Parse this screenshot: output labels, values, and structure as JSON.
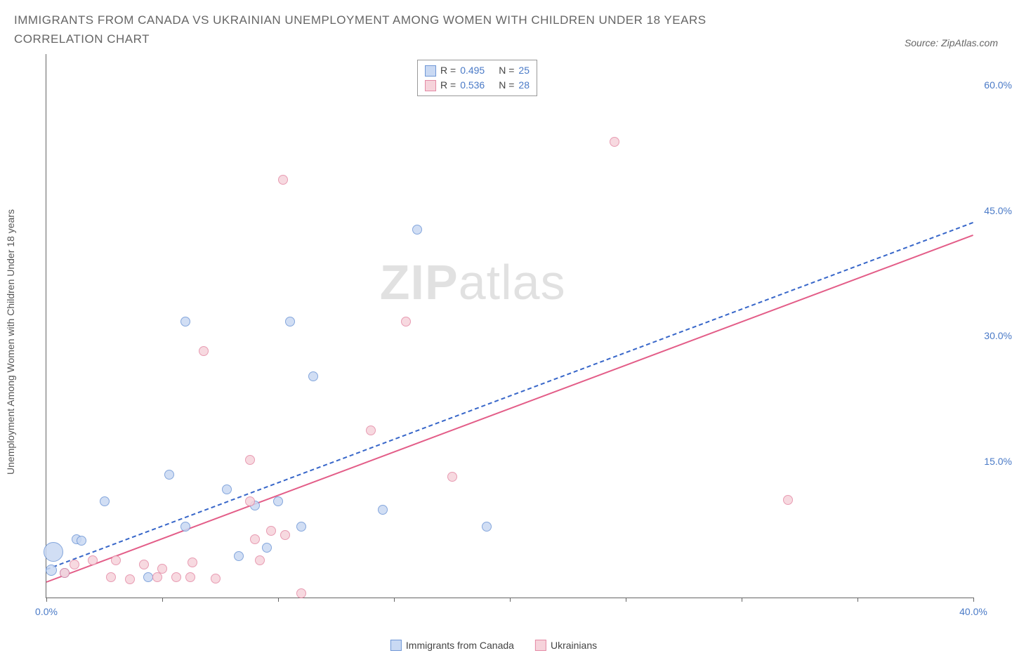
{
  "title": "IMMIGRANTS FROM CANADA VS UKRAINIAN UNEMPLOYMENT AMONG WOMEN WITH CHILDREN UNDER 18 YEARS CORRELATION CHART",
  "source_label": "Source: ZipAtlas.com",
  "watermark_bold": "ZIP",
  "watermark_light": "atlas",
  "chart": {
    "type": "scatter-with-trend",
    "y_axis_label": "Unemployment Among Women with Children Under 18 years",
    "x_axis": {
      "min": 0,
      "max": 40,
      "ticks": [
        0,
        5,
        10,
        15,
        20,
        25,
        30,
        35,
        40
      ],
      "labeled_ticks": [
        {
          "v": 0,
          "label": "0.0%"
        },
        {
          "v": 40,
          "label": "40.0%"
        }
      ]
    },
    "y_axis": {
      "min": 0,
      "max": 65,
      "labeled_ticks": [
        {
          "v": 15,
          "label": "15.0%"
        },
        {
          "v": 30,
          "label": "30.0%"
        },
        {
          "v": 45,
          "label": "45.0%"
        },
        {
          "v": 60,
          "label": "60.0%"
        }
      ]
    },
    "series": [
      {
        "name": "Immigrants from Canada",
        "fill": "#c9d9f3",
        "stroke": "#6f97d6",
        "R": "0.495",
        "N": "25",
        "trend": {
          "x0": 0,
          "y0": 3.5,
          "x1": 40,
          "y1": 45,
          "dashed": true,
          "color": "#3766c9"
        },
        "points": [
          {
            "x": 0.3,
            "y": 5.5,
            "r": 14
          },
          {
            "x": 0.2,
            "y": 3.3,
            "r": 8
          },
          {
            "x": 0.8,
            "y": 3.0,
            "r": 7
          },
          {
            "x": 1.3,
            "y": 7.0,
            "r": 7
          },
          {
            "x": 1.5,
            "y": 6.8,
            "r": 7
          },
          {
            "x": 2.5,
            "y": 11.5,
            "r": 7
          },
          {
            "x": 4.4,
            "y": 2.5,
            "r": 7
          },
          {
            "x": 5.3,
            "y": 14.7,
            "r": 7
          },
          {
            "x": 6.0,
            "y": 8.5,
            "r": 7
          },
          {
            "x": 6.0,
            "y": 33.0,
            "r": 7
          },
          {
            "x": 7.8,
            "y": 13.0,
            "r": 7
          },
          {
            "x": 8.3,
            "y": 5.0,
            "r": 7
          },
          {
            "x": 9.0,
            "y": 11.0,
            "r": 7
          },
          {
            "x": 9.5,
            "y": 6.0,
            "r": 7
          },
          {
            "x": 10.0,
            "y": 11.5,
            "r": 7
          },
          {
            "x": 10.5,
            "y": 33.0,
            "r": 7
          },
          {
            "x": 11.0,
            "y": 8.5,
            "r": 7
          },
          {
            "x": 11.5,
            "y": 26.5,
            "r": 7
          },
          {
            "x": 14.5,
            "y": 10.5,
            "r": 7
          },
          {
            "x": 16.0,
            "y": 44.0,
            "r": 7
          },
          {
            "x": 19.0,
            "y": 8.5,
            "r": 7
          }
        ]
      },
      {
        "name": "Ukrainians",
        "fill": "#f6d3db",
        "stroke": "#e48aa5",
        "R": "0.536",
        "N": "28",
        "trend": {
          "x0": 0,
          "y0": 2.0,
          "x1": 40,
          "y1": 43.5,
          "dashed": false,
          "color": "#e35d88"
        },
        "points": [
          {
            "x": 0.8,
            "y": 3.0,
            "r": 7
          },
          {
            "x": 1.2,
            "y": 4.0,
            "r": 7
          },
          {
            "x": 2.0,
            "y": 4.5,
            "r": 7
          },
          {
            "x": 2.8,
            "y": 2.5,
            "r": 7
          },
          {
            "x": 3.0,
            "y": 4.5,
            "r": 7
          },
          {
            "x": 3.6,
            "y": 2.2,
            "r": 7
          },
          {
            "x": 4.2,
            "y": 4.0,
            "r": 7
          },
          {
            "x": 4.8,
            "y": 2.5,
            "r": 7
          },
          {
            "x": 5.0,
            "y": 3.5,
            "r": 7
          },
          {
            "x": 5.6,
            "y": 2.5,
            "r": 7
          },
          {
            "x": 6.2,
            "y": 2.5,
            "r": 7
          },
          {
            "x": 6.3,
            "y": 4.2,
            "r": 7
          },
          {
            "x": 6.8,
            "y": 29.5,
            "r": 7
          },
          {
            "x": 7.3,
            "y": 2.3,
            "r": 7
          },
          {
            "x": 8.8,
            "y": 11.5,
            "r": 7
          },
          {
            "x": 9.0,
            "y": 7.0,
            "r": 7
          },
          {
            "x": 9.2,
            "y": 4.5,
            "r": 7
          },
          {
            "x": 8.8,
            "y": 16.5,
            "r": 7
          },
          {
            "x": 9.7,
            "y": 8.0,
            "r": 7
          },
          {
            "x": 10.2,
            "y": 50.0,
            "r": 7
          },
          {
            "x": 10.3,
            "y": 7.5,
            "r": 7
          },
          {
            "x": 11.0,
            "y": 0.5,
            "r": 7
          },
          {
            "x": 14.0,
            "y": 20.0,
            "r": 7
          },
          {
            "x": 15.5,
            "y": 33.0,
            "r": 7
          },
          {
            "x": 17.5,
            "y": 14.5,
            "r": 7
          },
          {
            "x": 24.5,
            "y": 54.5,
            "r": 7
          },
          {
            "x": 32.0,
            "y": 11.7,
            "r": 7
          }
        ]
      }
    ]
  }
}
